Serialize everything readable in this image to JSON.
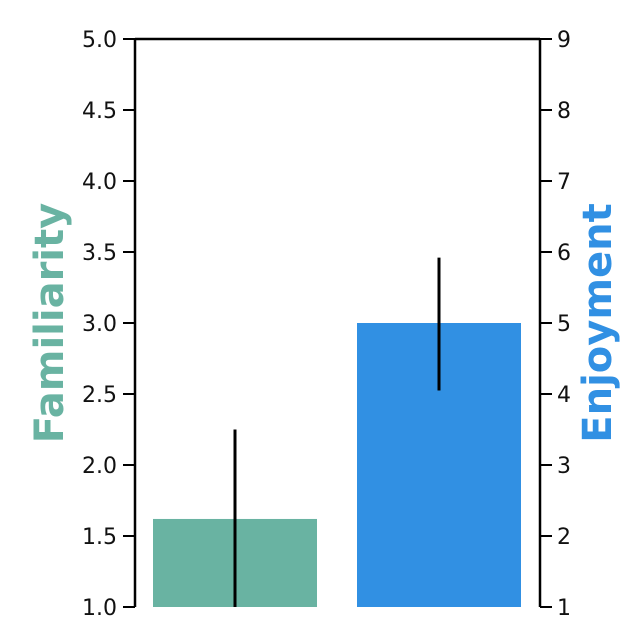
{
  "chart_data": {
    "type": "bar",
    "series": [
      {
        "name": "Familiarity",
        "axis": "left",
        "value": 1.62,
        "error": [
          1.0,
          2.25
        ],
        "color": "#69b3a2"
      },
      {
        "name": "Enjoyment",
        "axis": "right",
        "value": 5.0,
        "error": [
          4.05,
          5.92
        ],
        "color": "#3190e3"
      }
    ],
    "left_axis": {
      "label": "Familiarity",
      "label_color": "#69b3a2",
      "ylim": [
        1.0,
        5.0
      ],
      "ticks": [
        "1.0",
        "1.5",
        "2.0",
        "2.5",
        "3.0",
        "3.5",
        "4.0",
        "4.5",
        "5.0"
      ]
    },
    "right_axis": {
      "label": "Enjoyment",
      "label_color": "#3190e3",
      "ylim": [
        1,
        9
      ],
      "ticks": [
        "1",
        "2",
        "3",
        "4",
        "5",
        "6",
        "7",
        "8",
        "9"
      ]
    },
    "grid": false,
    "legend": "none"
  }
}
